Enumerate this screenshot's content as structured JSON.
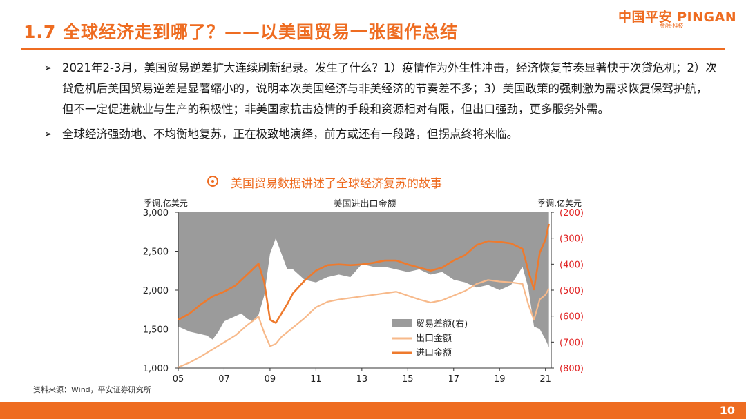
{
  "header": {
    "title": "1.7 全球经济走到哪了？——以美国贸易一张图作总结",
    "logo_text": "中国平安 PINGAN",
    "logo_sub": "金融·科技"
  },
  "bullets": [
    "2021年2-3月，美国贸易逆差扩大连续刷新纪录。发生了什么？1）疫情作为外生性冲击，经济恢复节奏显著快于次贷危机；2）次贷危机后美国贸易逆差是显著缩小的，说明本次美国经济与非美经济的节奏差不多；3）美国政策的强刺激为需求恢复保驾护航，但不一定促进就业与生产的积极性；非美国家抗击疫情的手段和资源相对有限，但出口强劲，更多服务外需。",
    "全球经济强劲地、不均衡地复苏，正在极致地演绎，前方或还有一段路，但拐点终将来临。"
  ],
  "chart_caption": "美国贸易数据讲述了全球经济复苏的故事",
  "source": "资料来源：Wind，平安证券研究所",
  "page_number": "10",
  "colors": {
    "accent": "#ee6c21",
    "import_line": "#ee7a2d",
    "export_line": "#f7b98a",
    "trade_balance_area": "#9b9b9b",
    "right_axis_text": "#e02020"
  },
  "chart_data": {
    "type": "line",
    "title": "美国进出口金额",
    "ylabel_left": "季调,亿美元",
    "ylabel_right": "季调,亿美元",
    "ylim_left": [
      1000,
      3000
    ],
    "ylim_right": [
      -800,
      -200
    ],
    "yticks_left": [
      "3,000",
      "2,500",
      "2,000",
      "1,500",
      "1,000"
    ],
    "yticks_right": [
      "(200)",
      "(300)",
      "(400)",
      "(500)",
      "(600)",
      "(700)",
      "(800)"
    ],
    "xlim": [
      2005.0,
      2021.25
    ],
    "xticks": [
      "05",
      "07",
      "09",
      "11",
      "13",
      "15",
      "17",
      "19",
      "21"
    ],
    "legend_position": "bottom-center",
    "series": [
      {
        "name": "贸易差额(右)",
        "axis": "right",
        "style": "area",
        "x": [
          2005.0,
          2005.25,
          2005.5,
          2005.75,
          2006.0,
          2006.25,
          2006.5,
          2006.75,
          2007.0,
          2007.25,
          2007.5,
          2007.75,
          2008.0,
          2008.25,
          2008.5,
          2008.75,
          2009.0,
          2009.25,
          2009.5,
          2009.75,
          2010.0,
          2010.5,
          2011.0,
          2011.5,
          2012.0,
          2012.5,
          2013.0,
          2013.5,
          2014.0,
          2014.5,
          2015.0,
          2015.5,
          2016.0,
          2016.5,
          2017.0,
          2017.5,
          2018.0,
          2018.5,
          2019.0,
          2019.5,
          2020.0,
          2020.25,
          2020.5,
          2020.75,
          2021.0,
          2021.15
        ],
        "values": [
          -640,
          -650,
          -660,
          -665,
          -670,
          -675,
          -690,
          -660,
          -620,
          -610,
          -600,
          -590,
          -610,
          -620,
          -595,
          -520,
          -360,
          -300,
          -360,
          -420,
          -420,
          -460,
          -470,
          -450,
          -440,
          -450,
          -400,
          -410,
          -410,
          -420,
          -430,
          -420,
          -440,
          -430,
          -460,
          -470,
          -490,
          -480,
          -500,
          -480,
          -410,
          -490,
          -640,
          -650,
          -690,
          -720
        ]
      },
      {
        "name": "出口金额",
        "axis": "left",
        "style": "line",
        "x": [
          2005.0,
          2005.5,
          2006.0,
          2006.5,
          2007.0,
          2007.5,
          2008.0,
          2008.5,
          2008.75,
          2009.0,
          2009.25,
          2009.5,
          2009.75,
          2010.0,
          2010.5,
          2011.0,
          2011.5,
          2012.0,
          2012.5,
          2013.0,
          2013.5,
          2014.0,
          2014.5,
          2015.0,
          2015.5,
          2016.0,
          2016.5,
          2017.0,
          2017.5,
          2018.0,
          2018.5,
          2019.0,
          2019.5,
          2020.0,
          2020.25,
          2020.5,
          2020.75,
          2021.0,
          2021.15
        ],
        "values": [
          1010,
          1070,
          1150,
          1240,
          1330,
          1420,
          1550,
          1660,
          1450,
          1280,
          1310,
          1400,
          1460,
          1520,
          1640,
          1780,
          1850,
          1880,
          1900,
          1920,
          1940,
          1960,
          1980,
          1930,
          1880,
          1840,
          1870,
          1930,
          1990,
          2080,
          2130,
          2110,
          2100,
          2080,
          1820,
          1620,
          1880,
          1940,
          2020
        ]
      },
      {
        "name": "进口金额",
        "axis": "left",
        "style": "line",
        "x": [
          2005.0,
          2005.5,
          2006.0,
          2006.5,
          2007.0,
          2007.5,
          2008.0,
          2008.5,
          2008.75,
          2009.0,
          2009.25,
          2009.5,
          2009.75,
          2010.0,
          2010.5,
          2011.0,
          2011.5,
          2012.0,
          2012.5,
          2013.0,
          2013.5,
          2014.0,
          2014.5,
          2015.0,
          2015.5,
          2016.0,
          2016.5,
          2017.0,
          2017.5,
          2018.0,
          2018.5,
          2019.0,
          2019.5,
          2020.0,
          2020.25,
          2020.5,
          2020.75,
          2021.0,
          2021.15
        ],
        "values": [
          1620,
          1700,
          1820,
          1920,
          1980,
          2060,
          2200,
          2340,
          2100,
          1620,
          1580,
          1700,
          1820,
          1960,
          2120,
          2250,
          2320,
          2330,
          2320,
          2330,
          2350,
          2380,
          2380,
          2330,
          2290,
          2250,
          2290,
          2380,
          2450,
          2580,
          2630,
          2620,
          2600,
          2530,
          2250,
          2010,
          2480,
          2650,
          2850
        ]
      }
    ]
  }
}
